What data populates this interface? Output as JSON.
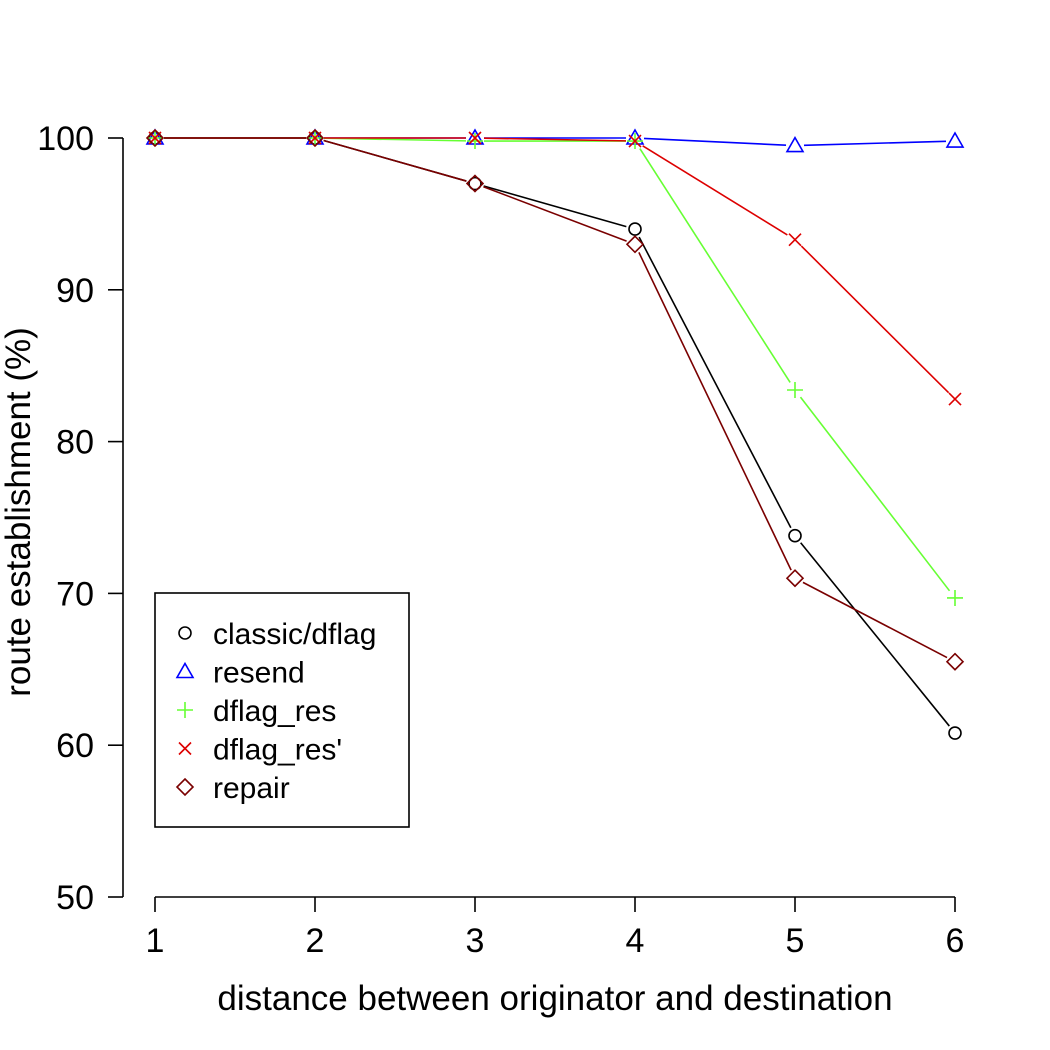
{
  "chart_data": {
    "type": "line",
    "title": "",
    "xlabel": "distance between originator and destination",
    "ylabel": "route establishment (%)",
    "x": [
      1,
      2,
      3,
      4,
      5,
      6
    ],
    "xlim": [
      1,
      6
    ],
    "ylim": [
      50,
      100
    ],
    "xticks": [
      "1",
      "2",
      "3",
      "4",
      "5",
      "6"
    ],
    "yticks": [
      "50",
      "60",
      "70",
      "80",
      "90",
      "100"
    ],
    "grid": false,
    "legend_position": "bottom-left",
    "series": [
      {
        "name": "classic/dflag",
        "color": "#000000",
        "marker": "circle",
        "values": [
          100,
          100,
          97,
          94,
          73.8,
          60.8
        ]
      },
      {
        "name": "resend",
        "color": "#0000ff",
        "marker": "triangle",
        "values": [
          100,
          100,
          100,
          100,
          99.5,
          99.8
        ]
      },
      {
        "name": "dflag_res",
        "color": "#66ff33",
        "marker": "plus",
        "values": [
          100,
          100,
          99.8,
          99.8,
          83.4,
          69.7
        ]
      },
      {
        "name": "dflag_res'",
        "color": "#dd0000",
        "marker": "cross",
        "values": [
          100,
          100,
          100,
          99.8,
          93.3,
          82.8
        ]
      },
      {
        "name": "repair",
        "color": "#7a0000",
        "marker": "diamond",
        "values": [
          100,
          100,
          97,
          93,
          71,
          65.5
        ]
      }
    ]
  }
}
